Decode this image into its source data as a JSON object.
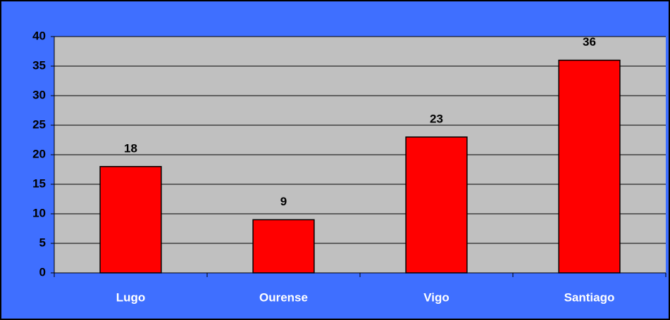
{
  "chart_data": {
    "type": "bar",
    "categories": [
      "Lugo",
      "Ourense",
      "Vigo",
      "Santiago"
    ],
    "values": [
      18,
      9,
      23,
      36
    ],
    "color": "#ff0000",
    "ylim": [
      0,
      40
    ],
    "yticks": [
      0,
      5,
      10,
      15,
      20,
      25,
      30,
      35,
      40
    ],
    "grid": true
  }
}
